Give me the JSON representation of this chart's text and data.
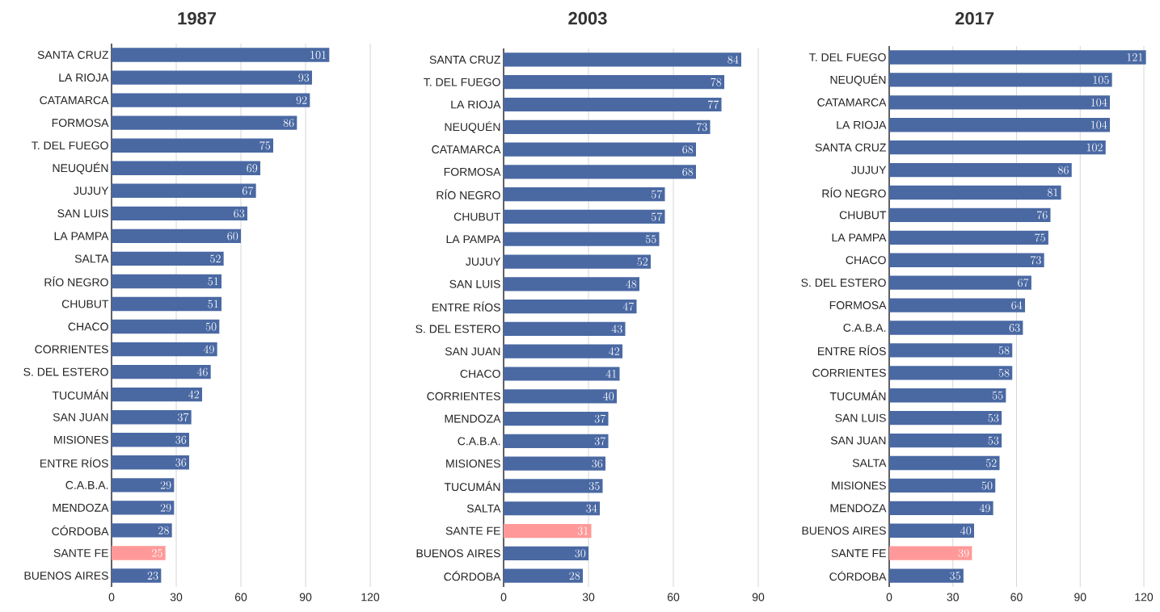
{
  "chart_data": [
    {
      "type": "bar",
      "orientation": "horizontal",
      "title": "1987",
      "categories": [
        "SANTA CRUZ",
        "LA RIOJA",
        "CATAMARCA",
        "FORMOSA",
        "T. DEL FUEGO",
        "NEUQUÉN",
        "JUJUY",
        "SAN LUIS",
        "LA PAMPA",
        "SALTA",
        "RÍO NEGRO",
        "CHUBUT",
        "CHACO",
        "CORRIENTES",
        "S. DEL ESTERO",
        "TUCUMÁN",
        "SAN JUAN",
        "MISIONES",
        "ENTRE RÍOS",
        "C.A.B.A.",
        "MENDOZA",
        "CÓRDOBA",
        "SANTE FE",
        "BUENOS AIRES"
      ],
      "values": [
        101,
        93,
        92,
        86,
        75,
        69,
        67,
        63,
        60,
        52,
        51,
        51,
        50,
        49,
        46,
        42,
        37,
        36,
        36,
        29,
        29,
        28,
        25,
        23
      ],
      "colors": [
        "#4a69a3",
        "#4a69a3",
        "#4a69a3",
        "#4a69a3",
        "#4a69a3",
        "#4a69a3",
        "#4a69a3",
        "#4a69a3",
        "#4a69a3",
        "#4a69a3",
        "#4a69a3",
        "#4a69a3",
        "#4a69a3",
        "#4a69a3",
        "#4a69a3",
        "#4a69a3",
        "#4a69a3",
        "#4a69a3",
        "#4a69a3",
        "#4a69a3",
        "#4a69a3",
        "#4a69a3",
        "#ff9999",
        "#4a69a3"
      ],
      "xlim": [
        0,
        120
      ],
      "xticks": [
        0,
        30,
        60,
        90,
        120
      ],
      "grid": "x",
      "data_labels": true
    },
    {
      "type": "bar",
      "orientation": "horizontal",
      "title": "2003",
      "categories": [
        "SANTA CRUZ",
        "T. DEL FUEGO",
        "LA RIOJA",
        "NEUQUÉN",
        "CATAMARCA",
        "FORMOSA",
        "RÍO NEGRO",
        "CHUBUT",
        "LA PAMPA",
        "JUJUY",
        "SAN LUIS",
        "ENTRE RÍOS",
        "S. DEL ESTERO",
        "SAN JUAN",
        "CHACO",
        "CORRIENTES",
        "MENDOZA",
        "C.A.B.A.",
        "MISIONES",
        "TUCUMÁN",
        "SALTA",
        "SANTE FE",
        "BUENOS AIRES",
        "CÓRDOBA"
      ],
      "values": [
        84,
        78,
        77,
        73,
        68,
        68,
        57,
        57,
        55,
        52,
        48,
        47,
        43,
        42,
        41,
        40,
        37,
        37,
        36,
        35,
        34,
        31,
        30,
        28
      ],
      "colors": [
        "#4a69a3",
        "#4a69a3",
        "#4a69a3",
        "#4a69a3",
        "#4a69a3",
        "#4a69a3",
        "#4a69a3",
        "#4a69a3",
        "#4a69a3",
        "#4a69a3",
        "#4a69a3",
        "#4a69a3",
        "#4a69a3",
        "#4a69a3",
        "#4a69a3",
        "#4a69a3",
        "#4a69a3",
        "#4a69a3",
        "#4a69a3",
        "#4a69a3",
        "#4a69a3",
        "#ff9999",
        "#4a69a3",
        "#4a69a3"
      ],
      "xlim": [
        0,
        90
      ],
      "xticks": [
        0,
        30,
        60,
        90
      ],
      "grid": "x",
      "data_labels": true
    },
    {
      "type": "bar",
      "orientation": "horizontal",
      "title": "2017",
      "categories": [
        "T. DEL FUEGO",
        "NEUQUÉN",
        "CATAMARCA",
        "LA RIOJA",
        "SANTA CRUZ",
        "JUJUY",
        "RÍO NEGRO",
        "CHUBUT",
        "LA PAMPA",
        "CHACO",
        "S. DEL ESTERO",
        "FORMOSA",
        "C.A.B.A.",
        "ENTRE RÍOS",
        "CORRIENTES",
        "TUCUMÁN",
        "SAN LUIS",
        "SAN JUAN",
        "SALTA",
        "MISIONES",
        "MENDOZA",
        "BUENOS AIRES",
        "SANTE FE",
        "CÓRDOBA"
      ],
      "values": [
        121,
        105,
        104,
        104,
        102,
        86,
        81,
        76,
        75,
        73,
        67,
        64,
        63,
        58,
        58,
        55,
        53,
        53,
        52,
        50,
        49,
        40,
        39,
        35
      ],
      "colors": [
        "#4a69a3",
        "#4a69a3",
        "#4a69a3",
        "#4a69a3",
        "#4a69a3",
        "#4a69a3",
        "#4a69a3",
        "#4a69a3",
        "#4a69a3",
        "#4a69a3",
        "#4a69a3",
        "#4a69a3",
        "#4a69a3",
        "#4a69a3",
        "#4a69a3",
        "#4a69a3",
        "#4a69a3",
        "#4a69a3",
        "#4a69a3",
        "#4a69a3",
        "#4a69a3",
        "#4a69a3",
        "#ff9999",
        "#4a69a3"
      ],
      "xlim": [
        0,
        122
      ],
      "xticks": [
        0,
        30,
        60,
        90,
        120
      ],
      "grid": "x",
      "data_labels": true
    }
  ]
}
